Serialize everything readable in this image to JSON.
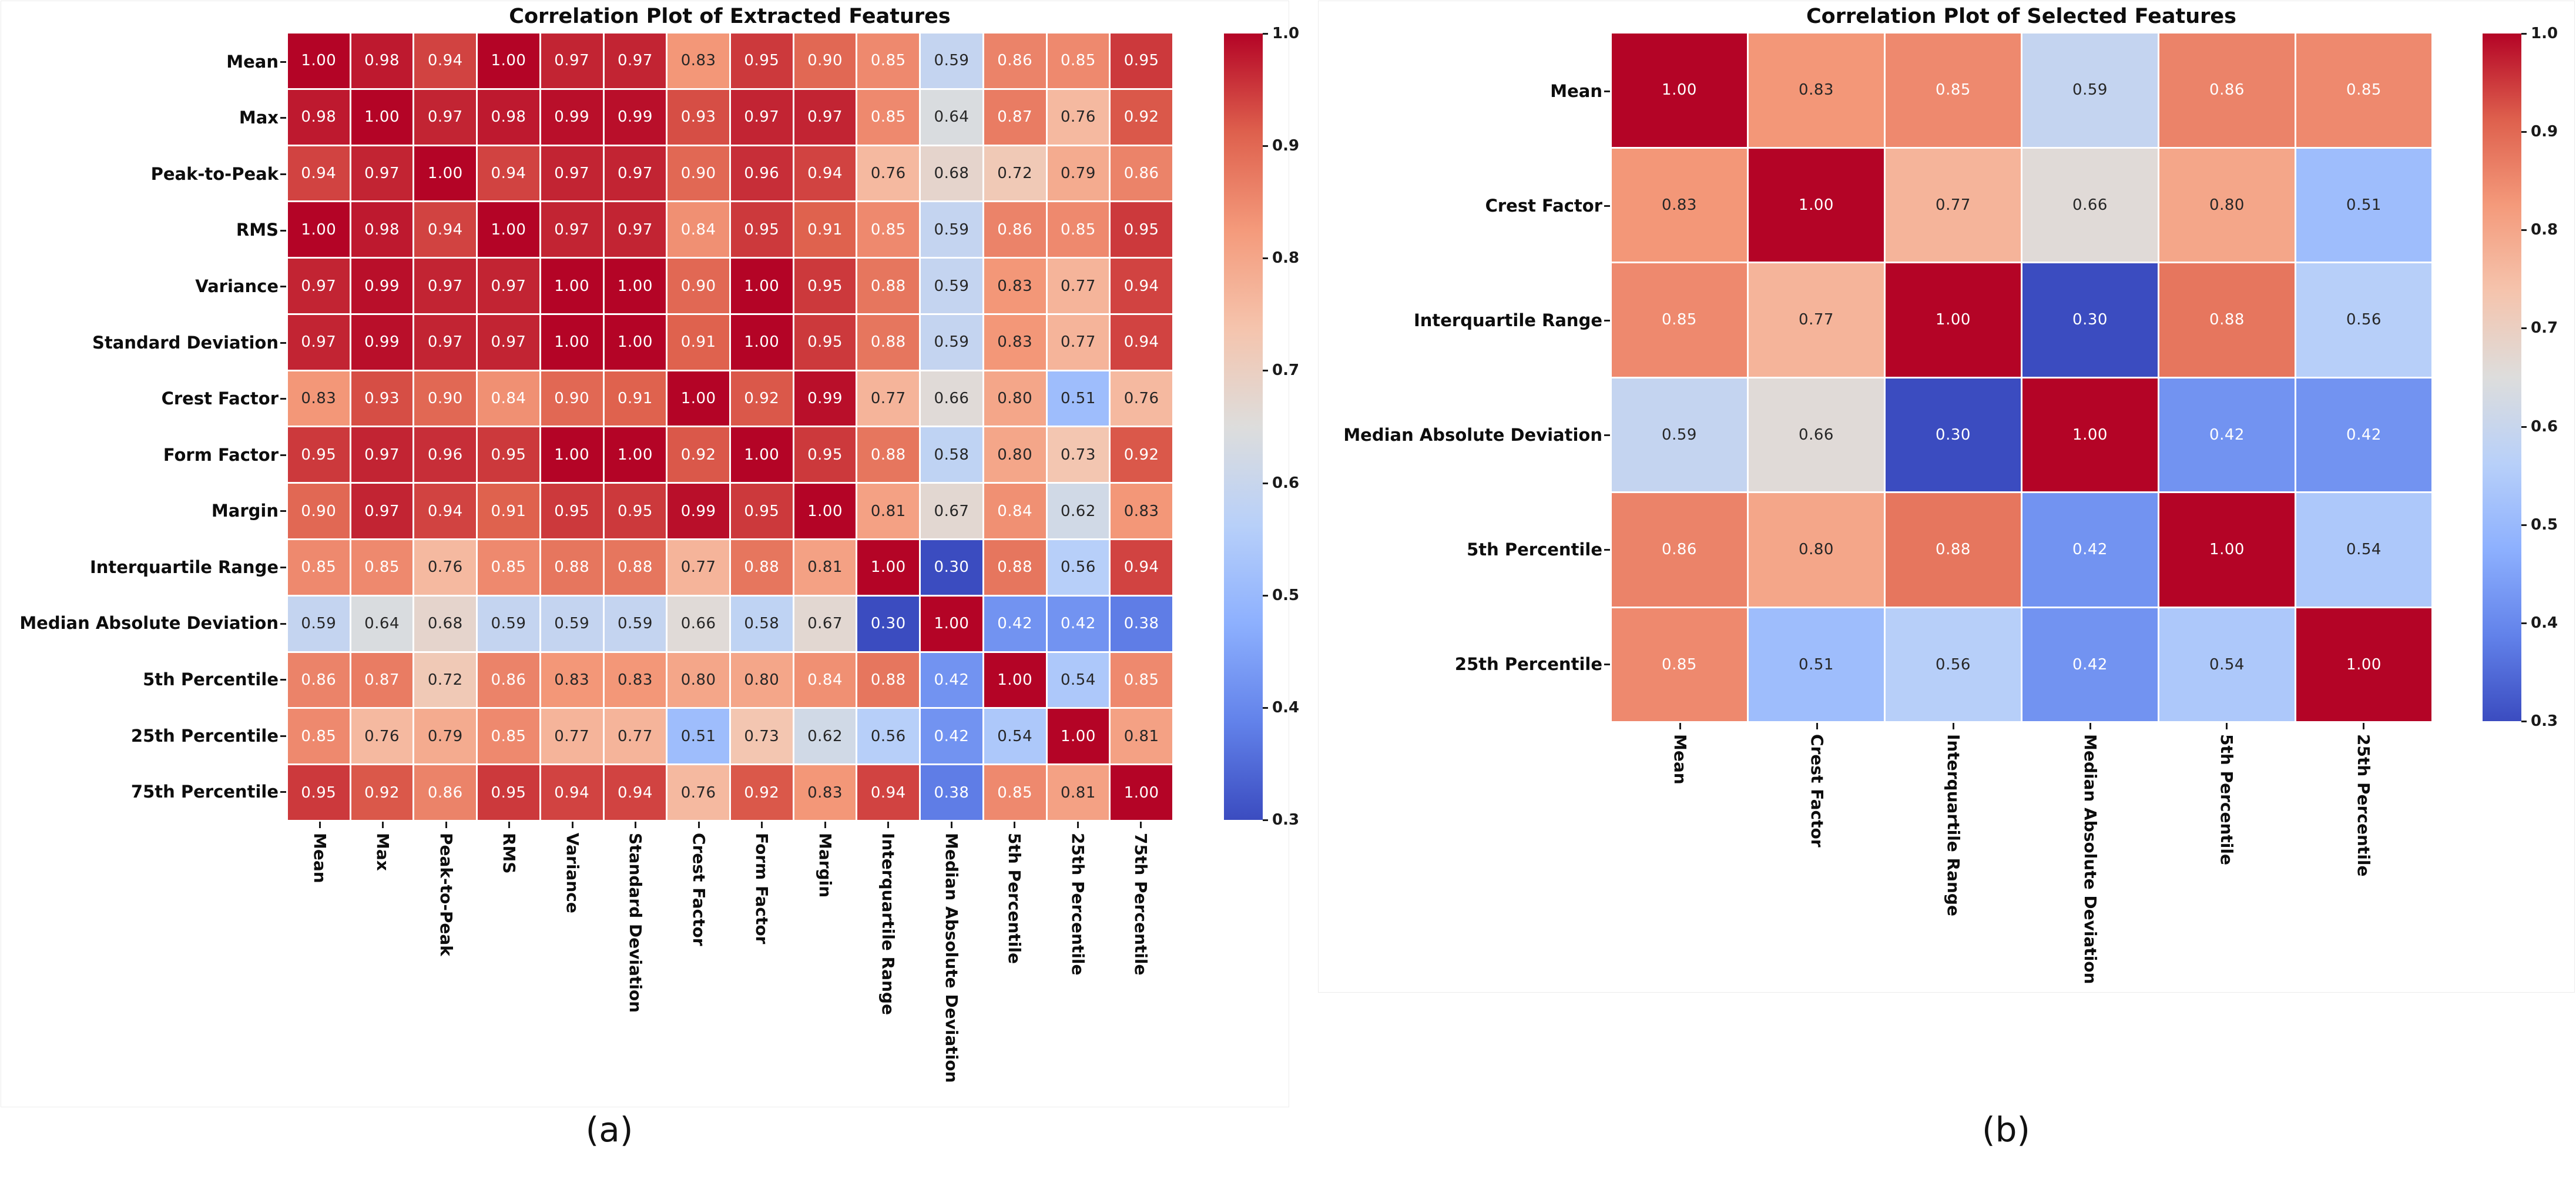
{
  "page": {
    "background": "#ffffff"
  },
  "chart_data": [
    {
      "type": "heatmap",
      "panel_label": "(a)",
      "title": "Correlation Plot of Extracted Features",
      "categories": [
        "Mean",
        "Max",
        "Peak-to-Peak",
        "RMS",
        "Variance",
        "Standard Deviation",
        "Crest Factor",
        "Form Factor",
        "Margin",
        "Interquartile Range",
        "Median Absolute Deviation",
        "5th Percentile",
        "25th Percentile",
        "75th Percentile"
      ],
      "matrix": [
        [
          1.0,
          0.98,
          0.94,
          1.0,
          0.97,
          0.97,
          0.83,
          0.95,
          0.9,
          0.85,
          0.59,
          0.86,
          0.85,
          0.95
        ],
        [
          0.98,
          1.0,
          0.97,
          0.98,
          0.99,
          0.99,
          0.93,
          0.97,
          0.97,
          0.85,
          0.64,
          0.87,
          0.76,
          0.92
        ],
        [
          0.94,
          0.97,
          1.0,
          0.94,
          0.97,
          0.97,
          0.9,
          0.96,
          0.94,
          0.76,
          0.68,
          0.72,
          0.79,
          0.86
        ],
        [
          1.0,
          0.98,
          0.94,
          1.0,
          0.97,
          0.97,
          0.84,
          0.95,
          0.91,
          0.85,
          0.59,
          0.86,
          0.85,
          0.95
        ],
        [
          0.97,
          0.99,
          0.97,
          0.97,
          1.0,
          1.0,
          0.9,
          1.0,
          0.95,
          0.88,
          0.59,
          0.83,
          0.77,
          0.94
        ],
        [
          0.97,
          0.99,
          0.97,
          0.97,
          1.0,
          1.0,
          0.91,
          1.0,
          0.95,
          0.88,
          0.59,
          0.83,
          0.77,
          0.94
        ],
        [
          0.83,
          0.93,
          0.9,
          0.84,
          0.9,
          0.91,
          1.0,
          0.92,
          0.99,
          0.77,
          0.66,
          0.8,
          0.51,
          0.76
        ],
        [
          0.95,
          0.97,
          0.96,
          0.95,
          1.0,
          1.0,
          0.92,
          1.0,
          0.95,
          0.88,
          0.58,
          0.8,
          0.73,
          0.92
        ],
        [
          0.9,
          0.97,
          0.94,
          0.91,
          0.95,
          0.95,
          0.99,
          0.95,
          1.0,
          0.81,
          0.67,
          0.84,
          0.62,
          0.83
        ],
        [
          0.85,
          0.85,
          0.76,
          0.85,
          0.88,
          0.88,
          0.77,
          0.88,
          0.81,
          1.0,
          0.3,
          0.88,
          0.56,
          0.94
        ],
        [
          0.59,
          0.64,
          0.68,
          0.59,
          0.59,
          0.59,
          0.66,
          0.58,
          0.67,
          0.3,
          1.0,
          0.42,
          0.42,
          0.38
        ],
        [
          0.86,
          0.87,
          0.72,
          0.86,
          0.83,
          0.83,
          0.8,
          0.8,
          0.84,
          0.88,
          0.42,
          1.0,
          0.54,
          0.85
        ],
        [
          0.85,
          0.76,
          0.79,
          0.85,
          0.77,
          0.77,
          0.51,
          0.73,
          0.62,
          0.56,
          0.42,
          0.54,
          1.0,
          0.81
        ],
        [
          0.95,
          0.92,
          0.86,
          0.95,
          0.94,
          0.94,
          0.76,
          0.92,
          0.83,
          0.94,
          0.38,
          0.85,
          0.81,
          1.0
        ]
      ],
      "value_decimals": 2,
      "colormap": "coolwarm",
      "grid_line_color": "#ffffff",
      "annotation_colors": {
        "light": "#ffffff",
        "dark": "#262626"
      },
      "colorbar": {
        "position": "right",
        "vmin": 0.3,
        "vmax": 1.0,
        "tick_labels": [
          "1.0",
          "0.9",
          "0.8",
          "0.7",
          "0.6",
          "0.5",
          "0.4",
          "0.3"
        ]
      }
    },
    {
      "type": "heatmap",
      "panel_label": "(b)",
      "title": "Correlation Plot of Selected Features",
      "categories": [
        "Mean",
        "Crest Factor",
        "Interquartile Range",
        "Median Absolute Deviation",
        "5th Percentile",
        "25th Percentile"
      ],
      "matrix": [
        [
          1.0,
          0.83,
          0.85,
          0.59,
          0.86,
          0.85
        ],
        [
          0.83,
          1.0,
          0.77,
          0.66,
          0.8,
          0.51
        ],
        [
          0.85,
          0.77,
          1.0,
          0.3,
          0.88,
          0.56
        ],
        [
          0.59,
          0.66,
          0.3,
          1.0,
          0.42,
          0.42
        ],
        [
          0.86,
          0.8,
          0.88,
          0.42,
          1.0,
          0.54
        ],
        [
          0.85,
          0.51,
          0.56,
          0.42,
          0.54,
          1.0
        ]
      ],
      "value_decimals": 2,
      "colormap": "coolwarm",
      "grid_line_color": "#ffffff",
      "annotation_colors": {
        "light": "#ffffff",
        "dark": "#262626"
      },
      "colorbar": {
        "position": "right",
        "vmin": 0.3,
        "vmax": 1.0,
        "tick_labels": [
          "1.0",
          "0.9",
          "0.8",
          "0.7",
          "0.6",
          "0.5",
          "0.4",
          "0.3"
        ]
      }
    }
  ],
  "colormap_stops": [
    {
      "t": 0.0,
      "hex": "#3b4cc0"
    },
    {
      "t": 0.125,
      "hex": "#6282ea"
    },
    {
      "t": 0.25,
      "hex": "#8db0fe"
    },
    {
      "t": 0.375,
      "hex": "#b8d0f9"
    },
    {
      "t": 0.5,
      "hex": "#dddddc"
    },
    {
      "t": 0.625,
      "hex": "#f5c4ad"
    },
    {
      "t": 0.75,
      "hex": "#f49a7b"
    },
    {
      "t": 0.875,
      "hex": "#de604d"
    },
    {
      "t": 1.0,
      "hex": "#b40426"
    }
  ]
}
